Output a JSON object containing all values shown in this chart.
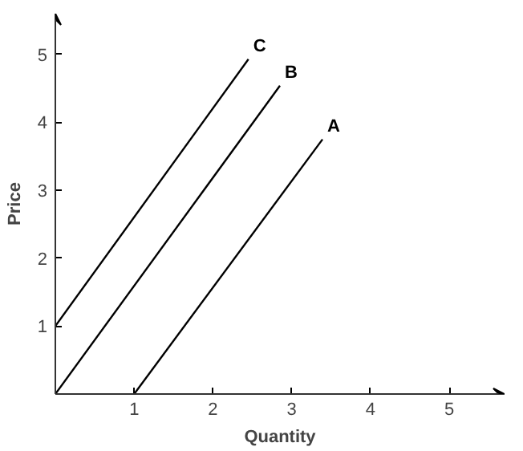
{
  "chart_data": {
    "type": "line",
    "xlabel": "Quantity",
    "ylabel": "Price",
    "xlim": [
      0,
      5.7
    ],
    "ylim": [
      0,
      5.6
    ],
    "xticks": [
      1,
      2,
      3,
      4,
      5
    ],
    "yticks": [
      1,
      2,
      3,
      4,
      5
    ],
    "grid": false,
    "series": [
      {
        "name": "C",
        "color": "#000000",
        "x": [
          0,
          2.45
        ],
        "values": [
          1,
          4.93
        ]
      },
      {
        "name": "B",
        "color": "#000000",
        "x": [
          0,
          2.85
        ],
        "values": [
          0,
          4.54
        ]
      },
      {
        "name": "A",
        "color": "#000000",
        "x": [
          1,
          3.39
        ],
        "values": [
          0,
          3.75
        ]
      }
    ]
  }
}
